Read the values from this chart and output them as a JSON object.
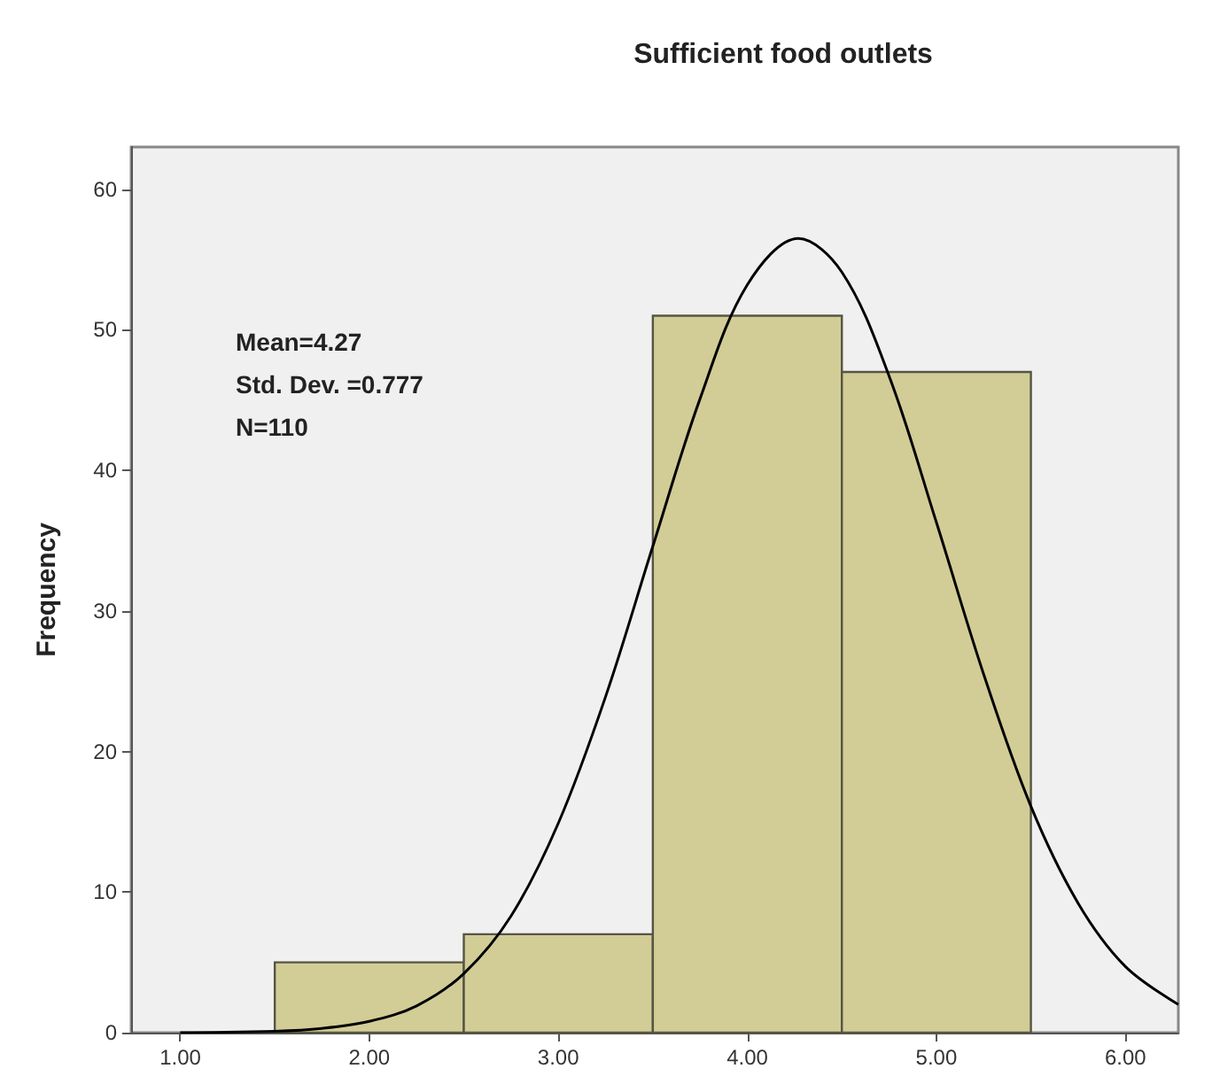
{
  "chart_data": {
    "type": "histogram",
    "title": "Sufficient food outlets",
    "ylabel": "Frequency",
    "annotations": [
      "Mean=4.27",
      "Std. Dev. =0.777",
      "N=110"
    ],
    "series": [
      {
        "color": "#d2cd96",
        "bins": [
          1.5,
          2.5,
          3.5,
          4.5,
          5.5
        ],
        "values": [
          5,
          7,
          51,
          47
        ]
      },
      {
        "type": "line",
        "color": "#000000",
        "x": [
          1.0,
          1.5,
          1.75,
          2.0,
          2.25,
          2.5,
          2.75,
          3.0,
          3.25,
          3.5,
          3.75,
          4.0,
          4.27,
          4.5,
          4.75,
          5.0,
          5.25,
          5.5,
          5.75,
          6.0,
          6.28
        ],
        "values": [
          0.0,
          0.1,
          0.3,
          0.8,
          1.9,
          4.2,
          8.3,
          14.9,
          23.9,
          34.6,
          45.1,
          53.2,
          56.5,
          54.1,
          46.7,
          36.3,
          25.5,
          16.1,
          9.2,
          4.7,
          2.0
        ]
      }
    ],
    "xlim": [
      0.74,
      6.28
    ],
    "xticks": [
      {
        "value": 1,
        "label": "1.00"
      },
      {
        "value": 2,
        "label": "2.00"
      },
      {
        "value": 3,
        "label": "3.00"
      },
      {
        "value": 4,
        "label": "4.00"
      },
      {
        "value": 5,
        "label": "5.00"
      },
      {
        "value": 6,
        "label": "6.00"
      }
    ],
    "ylim": [
      0,
      63
    ],
    "yticks": [
      0,
      10,
      20,
      30,
      40,
      50,
      60
    ],
    "grid": false,
    "marker": "none",
    "line_style": "solid"
  }
}
